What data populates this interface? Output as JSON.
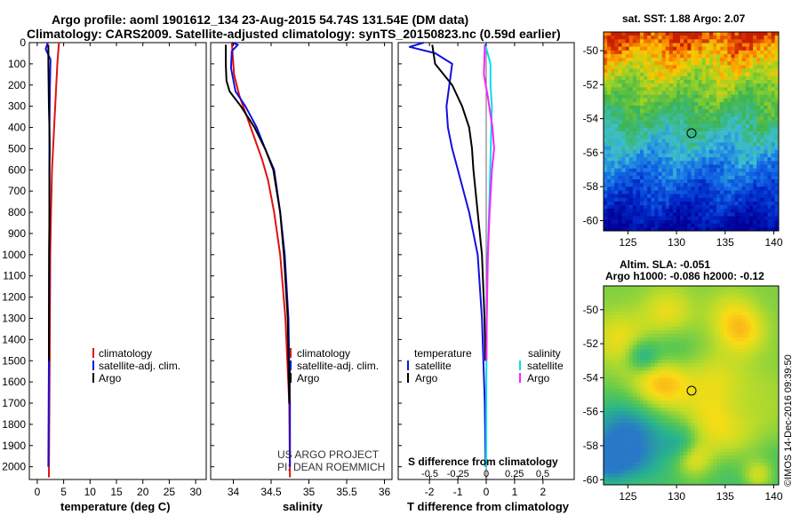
{
  "header": {
    "line1": "Argo profile: aoml 1901612_134 23-Aug-2015 54.74S 131.54E (DM data)",
    "line2": "Climatology: CARS2009. Satellite-adjusted climatology: synTS_20150823.nc (0.59d earlier)"
  },
  "depth_axis": {
    "ticks": [
      "0",
      "100",
      "200",
      "300",
      "400",
      "500",
      "600",
      "700",
      "800",
      "900",
      "1000",
      "1100",
      "1200",
      "1300",
      "1400",
      "1500",
      "1600",
      "1700",
      "1800",
      "1900",
      "2000"
    ],
    "range": [
      0,
      2060
    ]
  },
  "colors": {
    "climatology": "#e01010",
    "satellite": "#1010e0",
    "argo": "#000000",
    "sal_satellite": "#00e0e8",
    "sal_argo": "#ff20ff"
  },
  "chart_data": [
    {
      "type": "line",
      "panel": "temperature",
      "xlabel": "temperature (deg C)",
      "xlim": [
        -1.5,
        32
      ],
      "xticks": [
        0,
        5,
        10,
        15,
        20,
        25,
        30
      ],
      "xtick_labels": [
        "0",
        "5",
        "10",
        "15",
        "20",
        "25",
        "30"
      ],
      "ylim": [
        0,
        2060
      ],
      "legend": [
        "climatology",
        "satellite-adj. clim.",
        "Argo"
      ],
      "series": [
        {
          "name": "climatology",
          "color": "#e01010",
          "x": [
            4.1,
            3.8,
            3.6,
            3.4,
            3.2,
            3.0,
            2.8,
            2.6,
            2.45,
            2.35,
            2.2
          ],
          "y": [
            0,
            100,
            200,
            300,
            400,
            500,
            600,
            800,
            1000,
            1500,
            2050
          ]
        },
        {
          "name": "satellite-adj. clim.",
          "color": "#1010e0",
          "x": [
            2.0,
            1.6,
            2.5,
            2.4,
            2.35,
            2.3,
            2.3,
            2.3,
            2.25,
            2.2,
            2.1
          ],
          "y": [
            0,
            30,
            80,
            200,
            300,
            400,
            600,
            800,
            1000,
            1500,
            2000
          ]
        },
        {
          "name": "Argo",
          "color": "#000000",
          "x": [
            2.1,
            2.1,
            2.15,
            2.2,
            2.3,
            2.35,
            2.3,
            2.3,
            2.25,
            2.2
          ],
          "y": [
            10,
            100,
            200,
            300,
            400,
            500,
            600,
            800,
            1000,
            1500
          ]
        }
      ]
    },
    {
      "type": "line",
      "panel": "salinity",
      "xlabel": "salinity",
      "xlim": [
        33.7,
        36.1
      ],
      "xticks": [
        34,
        34.5,
        35,
        35.5,
        36
      ],
      "xtick_labels": [
        "34",
        "34.5",
        "35",
        "35.5",
        "36"
      ],
      "ylim": [
        0,
        2060
      ],
      "legend": [
        "climatology",
        "satellite-adj. clim.",
        "Argo"
      ],
      "series": [
        {
          "name": "climatology",
          "color": "#e01010",
          "x": [
            33.98,
            34.01,
            34.08,
            34.18,
            34.28,
            34.38,
            34.46,
            34.54,
            34.62,
            34.69,
            34.74,
            34.75
          ],
          "y": [
            0,
            150,
            250,
            350,
            450,
            550,
            650,
            800,
            1000,
            1300,
            1700,
            2050
          ]
        },
        {
          "name": "satellite-adj. clim.",
          "color": "#1010e0",
          "x": [
            33.98,
            34.06,
            33.98,
            33.97,
            34.03,
            34.16,
            34.31,
            34.42,
            34.54,
            34.62,
            34.68,
            34.73,
            34.75,
            34.75
          ],
          "y": [
            0,
            10,
            40,
            120,
            230,
            300,
            400,
            500,
            600,
            800,
            1000,
            1300,
            1700,
            2000
          ]
        },
        {
          "name": "Argo",
          "color": "#000000",
          "x": [
            33.9,
            33.9,
            33.91,
            33.95,
            34.1,
            34.28,
            34.42,
            34.53,
            34.62,
            34.67,
            34.72,
            34.74,
            34.75
          ],
          "y": [
            10,
            100,
            180,
            230,
            300,
            400,
            500,
            600,
            800,
            1000,
            1300,
            1700,
            1500
          ]
        }
      ]
    },
    {
      "type": "line",
      "panel": "difference",
      "xlabel": "T difference from climatology",
      "xlabel2": "S difference from climatology",
      "xlim": [
        -3.1,
        3.1
      ],
      "xticks": [
        -2,
        -1,
        0,
        1,
        2
      ],
      "xtick_labels": [
        "-2",
        "-1",
        "0",
        "1",
        "2"
      ],
      "xticks2": [
        -0.5,
        -0.25,
        0,
        0.25,
        0.5
      ],
      "xtick_labels2": [
        "-0.5",
        "-0.25",
        "0",
        "0.25",
        "0.5"
      ],
      "ylim": [
        0,
        2060
      ],
      "legend_left_title": "temperature",
      "legend_right_title": "salinity",
      "legend_left": [
        "satellite",
        "Argo"
      ],
      "legend_right": [
        "satellite",
        "Argo"
      ],
      "series": [
        {
          "name": "T satellite",
          "color": "#1010e0",
          "x": [
            -2.2,
            -2.7,
            -1.8,
            -1.2,
            -1.3,
            -1.4,
            -1.35,
            -1.2,
            -1.0,
            -0.6,
            -0.3,
            -0.15,
            -0.05,
            -0.02
          ],
          "y": [
            0,
            20,
            50,
            100,
            200,
            300,
            400,
            500,
            600,
            800,
            1000,
            1300,
            1700,
            2000
          ]
        },
        {
          "name": "T Argo",
          "color": "#000000",
          "x": [
            -1.9,
            -1.8,
            -1.2,
            -0.85,
            -0.6,
            -0.5,
            -0.45,
            -0.3,
            -0.15,
            -0.06,
            -0.03
          ],
          "y": [
            10,
            100,
            200,
            300,
            400,
            500,
            600,
            800,
            1000,
            1300,
            1500
          ]
        },
        {
          "name": "S satellite",
          "color": "#00e0e8",
          "x": [
            -0.05,
            0.15,
            0.15,
            0.15,
            0.2,
            0.18,
            0.14,
            0.1,
            0.05,
            0.02,
            0.0,
            0.0
          ],
          "y": [
            0,
            100,
            150,
            200,
            300,
            400,
            600,
            800,
            1000,
            1300,
            1700,
            2000
          ]
        },
        {
          "name": "S Argo",
          "color": "#ff20ff",
          "x": [
            -0.05,
            -0.07,
            -0.08,
            0.05,
            0.22,
            0.28,
            0.2,
            0.12,
            0.06,
            0.02,
            0.01
          ],
          "y": [
            10,
            100,
            150,
            250,
            400,
            500,
            600,
            800,
            1000,
            1300,
            1500
          ]
        }
      ]
    },
    {
      "type": "heatmap",
      "panel": "sst_map",
      "title": "sat. SST: 1.88 Argo: 2.07",
      "xlim": [
        122.5,
        140.5
      ],
      "ylim": [
        -60.6,
        -48.9
      ],
      "xticks": [
        125,
        130,
        135,
        140
      ],
      "xtick_labels": [
        "125",
        "130",
        "135",
        "140"
      ],
      "yticks": [
        -50,
        -52,
        -54,
        -56,
        -58,
        -60
      ],
      "ytick_labels": [
        "-50",
        "-52",
        "-54",
        "-56",
        "-58",
        "-60"
      ],
      "marker": {
        "lon": 131.54,
        "lat": -54.74
      }
    },
    {
      "type": "heatmap",
      "panel": "sla_map",
      "title": "Altim. SLA: -0.051",
      "subtitle": "Argo h1000: -0.086 h2000: -0.12",
      "xlim": [
        122.5,
        140.5
      ],
      "ylim": [
        -60.3,
        -48.6
      ],
      "xticks": [
        125,
        130,
        135,
        140
      ],
      "xtick_labels": [
        "125",
        "130",
        "135",
        "140"
      ],
      "yticks": [
        -50,
        -52,
        -54,
        -56,
        -58,
        -60
      ],
      "ytick_labels": [
        "-50",
        "-52",
        "-54",
        "-56",
        "-58",
        "-60"
      ],
      "marker": {
        "lon": 131.54,
        "lat": -54.74
      }
    }
  ],
  "annotations": {
    "project_line1": "US ARGO PROJECT",
    "project_line2": "PI: DEAN ROEMMICH",
    "watermark": "©IMOS 14-Dec-2016 09:39:50"
  }
}
